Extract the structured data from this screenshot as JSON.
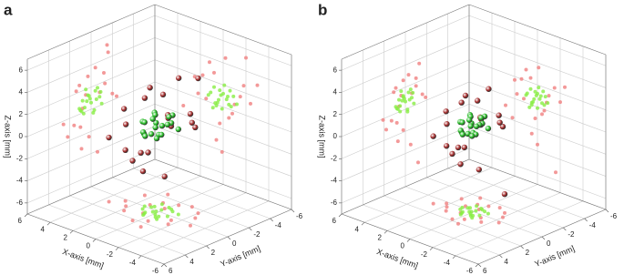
{
  "chart_data": [
    {
      "type": "scatter3d",
      "label": "a",
      "xlabel": "X-axis [mm]",
      "ylabel": "Y-axis [mm]",
      "zlabel": "Z-axis [mm]",
      "xlim": [
        -6,
        6
      ],
      "ylim": [
        -6,
        6
      ],
      "zlim": [
        -7,
        7
      ],
      "xticks": [
        -6,
        -4,
        -2,
        0,
        2,
        4,
        6
      ],
      "yticks": [
        -6,
        -4,
        -2,
        0,
        2,
        4,
        6
      ],
      "zticks": [
        -6,
        -4,
        -2,
        0,
        2,
        4,
        6
      ],
      "grid": true,
      "series": [
        {
          "color": "#a52a2a",
          "projection_color": "#f08080",
          "x": [
            -1.5,
            0.8,
            2.2,
            -0.5,
            1.2,
            -2.4,
            0.3,
            1.8,
            -1,
            2.8,
            -0.2,
            0.6,
            -1.8,
            1.5,
            -3,
            0.1,
            2.5,
            -0.8,
            3.5,
            -2
          ],
          "y": [
            0.5,
            -1.2,
            0.8,
            1.6,
            -0.4,
            -0.8,
            2.2,
            1.4,
            -2,
            0.2,
            -1.6,
            0.9,
            1.1,
            -2.4,
            0.3,
            -0.6,
            -1.3,
            2.6,
            1,
            -1.5
          ],
          "z": [
            1.5,
            2.8,
            0.4,
            -0.8,
            3.6,
            1.2,
            -1.6,
            2.2,
            0.6,
            -2.4,
            4.5,
            -3.2,
            2.6,
            0.2,
            3.1,
            -4.1,
            1.8,
            -0.3,
            -1.2,
            5.2
          ]
        },
        {
          "color": "#22bb22",
          "projection_color": "#88ee44",
          "x": [
            0.2,
            -0.5,
            0.8,
            -0.3,
            0.5,
            -0.9,
            0.1,
            1.1,
            -0.6,
            0.4,
            -0.1,
            0.7,
            -0.4,
            0.9,
            -1.2,
            0.3,
            -0.7,
            0.6,
            0,
            1.3
          ],
          "y": [
            0.1,
            0.6,
            -0.4,
            -0.8,
            0.9,
            0.2,
            -0.3,
            0.4,
            -0.6,
            1.1,
            0.5,
            -1,
            0.8,
            -0.2,
            -0.5,
            0.3,
            1,
            0.7,
            -0.9,
            0
          ],
          "z": [
            1,
            0.4,
            1.5,
            0.8,
            0.2,
            1.3,
            -0.2,
            0.9,
            1.7,
            0.5,
            2,
            0.1,
            1.1,
            -0.4,
            0.7,
            1.4,
            0.3,
            -0.1,
            1.2,
            0.6
          ]
        }
      ]
    },
    {
      "type": "scatter3d",
      "label": "b",
      "xlabel": "X-axis [mm]",
      "ylabel": "Y-axis [mm]",
      "zlabel": "Z-axis [mm]",
      "xlim": [
        -6,
        6
      ],
      "ylim": [
        -6,
        6
      ],
      "zlim": [
        -7,
        7
      ],
      "xticks": [
        -6,
        -4,
        -2,
        0,
        2,
        4,
        6
      ],
      "yticks": [
        -6,
        -4,
        -2,
        0,
        2,
        4,
        6
      ],
      "zticks": [
        -6,
        -4,
        -2,
        0,
        2,
        4,
        6
      ],
      "grid": true,
      "series": [
        {
          "color": "#a52a2a",
          "projection_color": "#f08080",
          "x": [
            -1,
            0.6,
            1.8,
            -0.4,
            1,
            -2,
            0.2,
            1.4,
            -0.8,
            2.2,
            -0.1,
            0.5,
            -1.5,
            1.2,
            -2.4,
            0,
            2,
            -0.6,
            2.8,
            -1.6
          ],
          "y": [
            0.4,
            -1,
            0.6,
            1.3,
            -0.3,
            -0.6,
            1.8,
            1.1,
            -1.6,
            0.2,
            -1.3,
            0.7,
            0.9,
            -1.9,
            0.2,
            -0.5,
            -1,
            2.1,
            0.8,
            -1.2
          ],
          "z": [
            1.4,
            2.4,
            0.5,
            -0.5,
            3,
            1.2,
            -1.1,
            2,
            0.7,
            -1.8,
            3.6,
            -2.6,
            2.3,
            0.3,
            2.7,
            -3.4,
            1.7,
            -0.1,
            -0.9,
            -5.3
          ]
        },
        {
          "color": "#22bb22",
          "projection_color": "#88ee44",
          "x": [
            0.1,
            -0.4,
            0.6,
            -0.2,
            0.4,
            -0.7,
            0,
            0.9,
            -0.5,
            0.3,
            -0.1,
            0.5,
            -0.3,
            0.7,
            -0.9,
            0.2,
            -0.6,
            0.5,
            0,
            1
          ],
          "y": [
            0.1,
            0.5,
            -0.3,
            -0.6,
            0.7,
            0.2,
            -0.2,
            0.3,
            -0.5,
            0.9,
            0.4,
            -0.8,
            0.6,
            -0.2,
            -0.4,
            0.2,
            0.8,
            0.5,
            -0.7,
            0
          ],
          "z": [
            1,
            0.5,
            1.4,
            0.8,
            0.3,
            1.2,
            -0.1,
            0.9,
            1.6,
            0.6,
            1.8,
            0.2,
            1.1,
            -0.3,
            0.7,
            1.3,
            0.4,
            0,
            1.2,
            0.7
          ]
        }
      ]
    }
  ]
}
